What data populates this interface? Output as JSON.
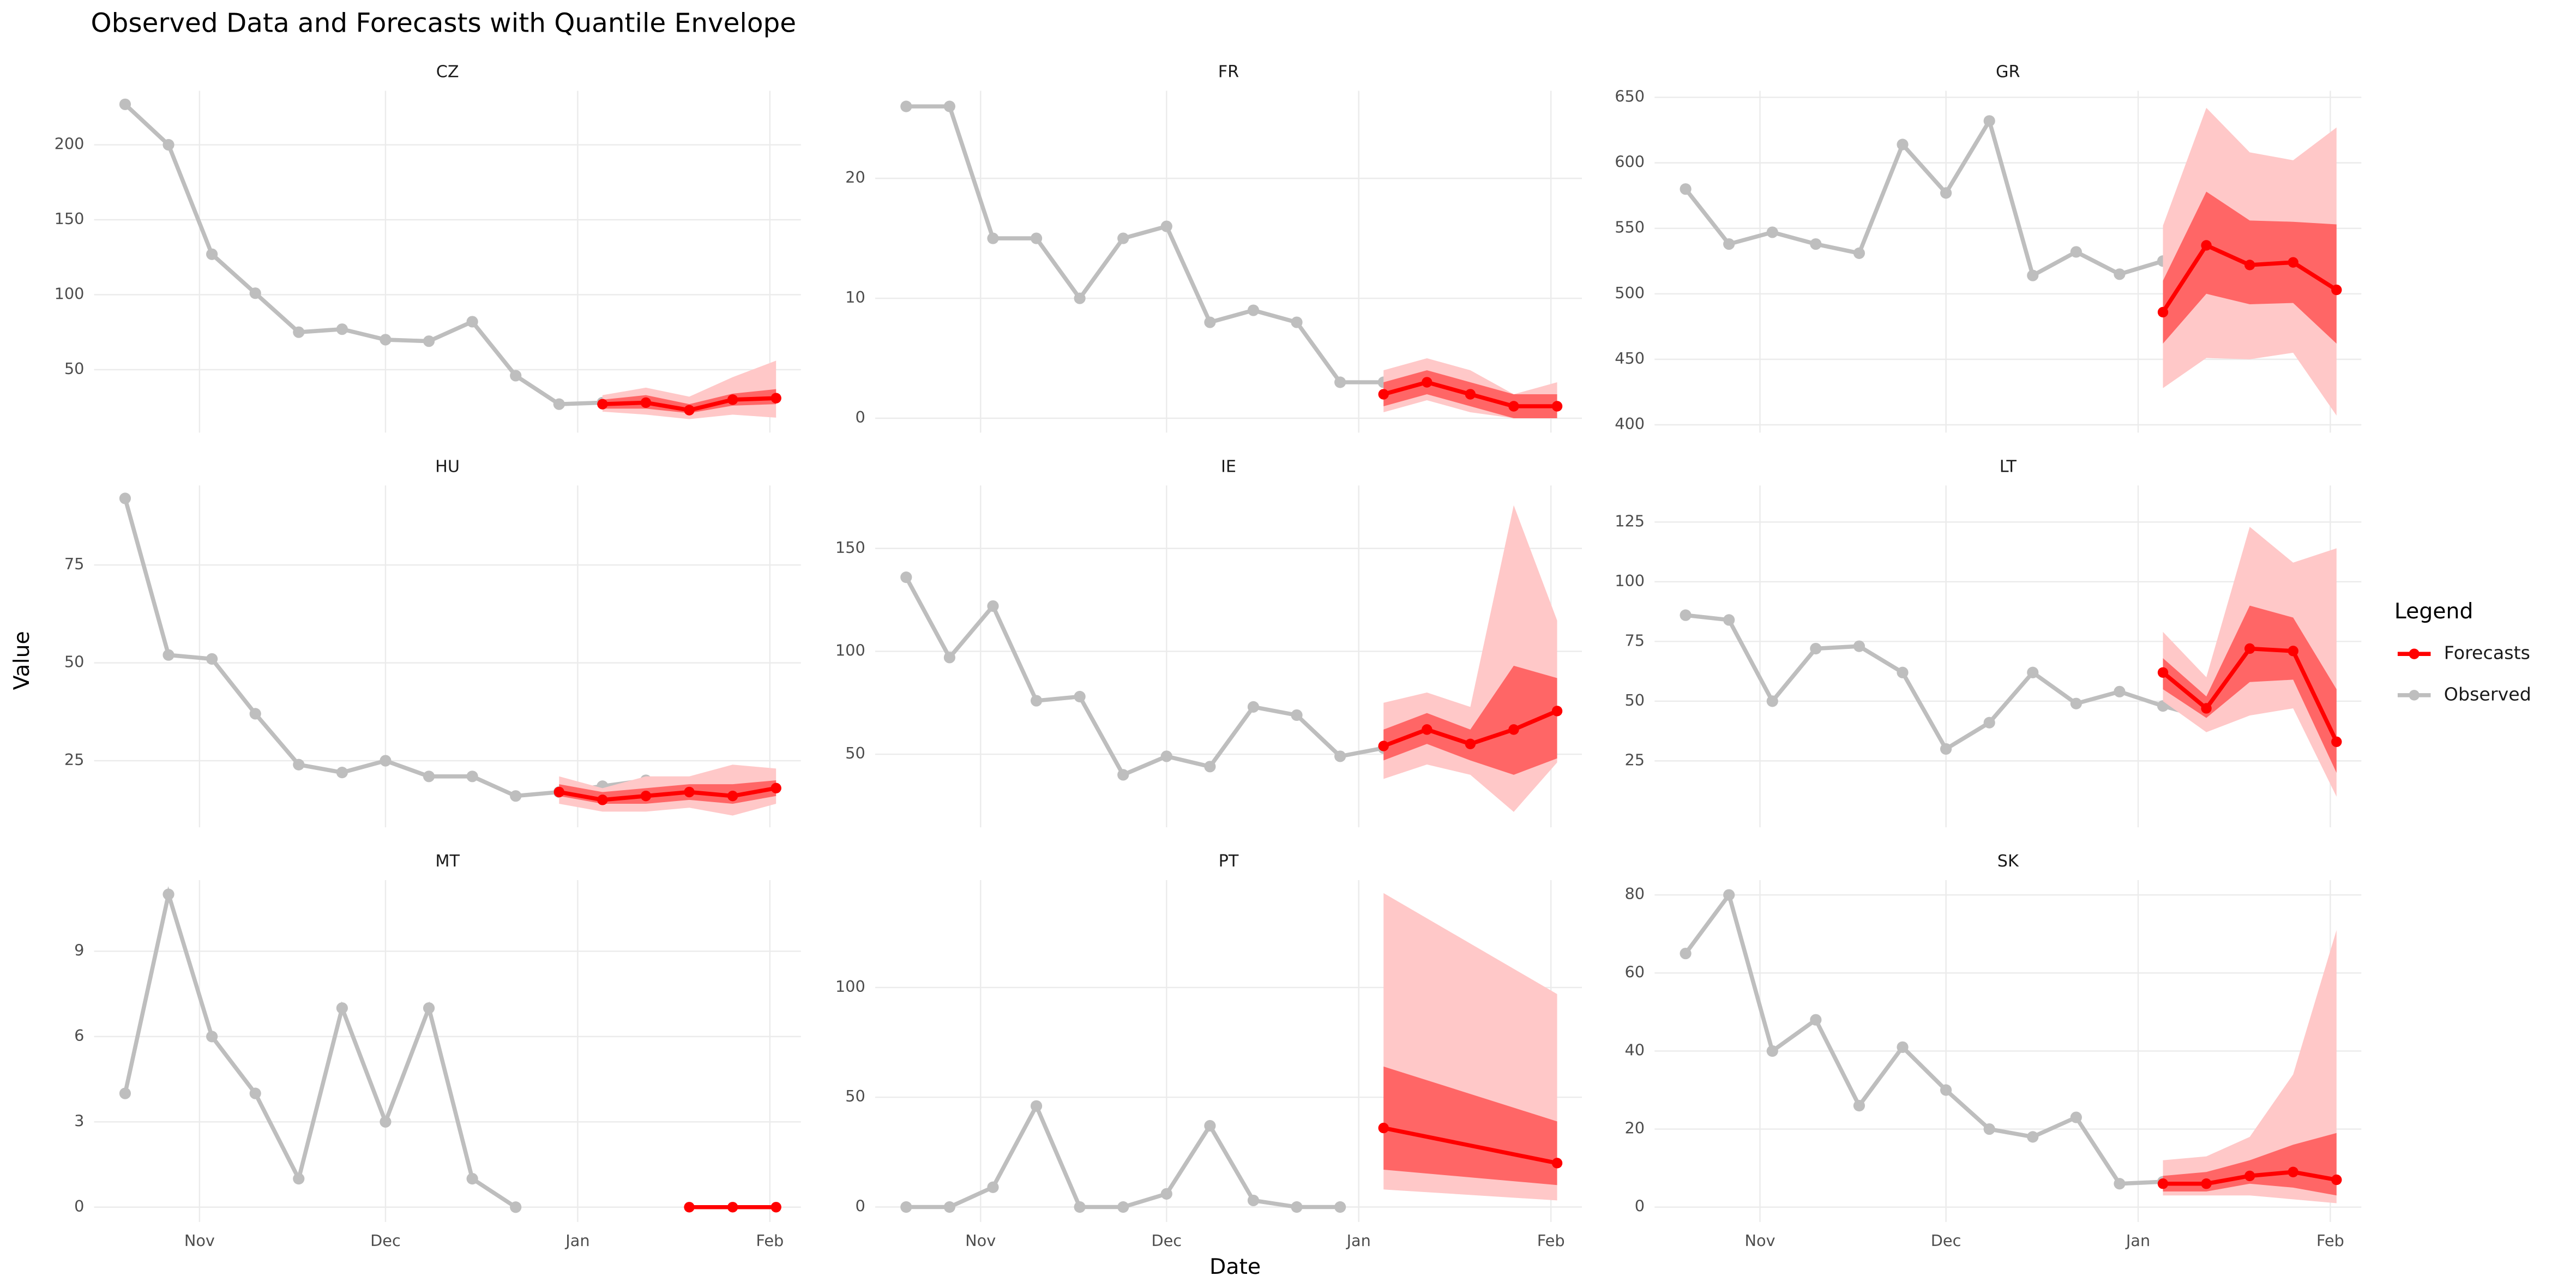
{
  "chart_data": {
    "type": "line",
    "title": "Observed Data and Forecasts with Quantile Envelope",
    "xlabel": "Date",
    "ylabel": "Value",
    "legend_title": "Legend",
    "legend": "right",
    "grid": true,
    "xlim": [
      -5,
      109
    ],
    "xticks": [
      {
        "value": 12,
        "label": "Nov"
      },
      {
        "value": 42,
        "label": "Dec"
      },
      {
        "value": 73,
        "label": "Jan"
      },
      {
        "value": 104,
        "label": "Feb"
      }
    ],
    "series": [
      {
        "name": "Forecasts",
        "color": "#ff0000"
      },
      {
        "name": "Observed",
        "color": "#bebebe"
      }
    ],
    "inner_band_color": "#ff6666",
    "outer_band_color": "#ffc8c8",
    "panels": [
      {
        "name": "CZ",
        "ylim": [
          8,
          236
        ],
        "yticks": [
          50,
          100,
          150,
          200
        ],
        "observed": {
          "x": [
            0,
            7,
            14,
            21,
            28,
            35,
            42,
            49,
            56,
            63,
            70,
            77,
            84
          ],
          "values": [
            227,
            200,
            127,
            101,
            75,
            77,
            70,
            69,
            82,
            46,
            27,
            28,
            31
          ]
        },
        "forecast": {
          "x": [
            77,
            84,
            91,
            98,
            105
          ],
          "values": [
            27,
            28,
            23,
            30,
            31
          ],
          "inner_lower": [
            24,
            24,
            21,
            26,
            27
          ],
          "inner_upper": [
            30,
            33,
            27,
            34,
            37
          ],
          "outer_lower": [
            22,
            20,
            17,
            20,
            18
          ],
          "outer_upper": [
            33,
            38,
            32,
            45,
            56
          ]
        }
      },
      {
        "name": "FR",
        "ylim": [
          -1.2,
          27.3
        ],
        "yticks": [
          0,
          10,
          20
        ],
        "observed": {
          "x": [
            0,
            7,
            14,
            21,
            28,
            35,
            42,
            49,
            56,
            63,
            70,
            77
          ],
          "values": [
            26,
            26,
            15,
            15,
            10,
            15,
            16,
            8,
            9,
            8,
            3,
            3
          ]
        },
        "forecast": {
          "x": [
            77,
            84,
            91,
            98,
            105
          ],
          "values": [
            2,
            3,
            2,
            1,
            1
          ],
          "inner_lower": [
            1,
            2,
            1,
            0,
            0
          ],
          "inner_upper": [
            3,
            4,
            3,
            2,
            2
          ],
          "outer_lower": [
            0.5,
            1.5,
            0.5,
            0,
            0
          ],
          "outer_upper": [
            4,
            5,
            4,
            2,
            3
          ]
        }
      },
      {
        "name": "GR",
        "ylim": [
          394,
          655
        ],
        "yticks": [
          400,
          450,
          500,
          550,
          600,
          650
        ],
        "observed": {
          "x": [
            0,
            7,
            14,
            21,
            28,
            35,
            42,
            49,
            56,
            63,
            70,
            77,
            84
          ],
          "values": [
            580,
            538,
            547,
            538,
            531,
            614,
            577,
            632,
            514,
            532,
            515,
            525,
            537
          ]
        },
        "forecast": {
          "x": [
            77,
            84,
            91,
            98,
            105
          ],
          "values": [
            486,
            537,
            522,
            524,
            503
          ],
          "inner_lower": [
            462,
            500,
            492,
            493,
            462
          ],
          "inner_upper": [
            510,
            578,
            556,
            555,
            553
          ],
          "outer_lower": [
            428,
            451,
            450,
            455,
            407
          ],
          "outer_upper": [
            552,
            642,
            608,
            602,
            627
          ]
        }
      },
      {
        "name": "HU",
        "ylim": [
          8,
          95.3
        ],
        "yticks": [
          25,
          50,
          75
        ],
        "observed": {
          "x": [
            0,
            7,
            14,
            21,
            28,
            35,
            42,
            49,
            56,
            63,
            70,
            77,
            84
          ],
          "values": [
            92,
            52,
            51,
            37,
            24,
            22,
            25,
            21,
            21,
            16,
            17,
            18.5,
            20
          ]
        },
        "forecast": {
          "x": [
            70,
            77,
            84,
            91,
            98,
            105
          ],
          "values": [
            17,
            15,
            16,
            17,
            16,
            18
          ],
          "inner_lower": [
            16,
            14,
            14,
            15,
            14,
            16
          ],
          "inner_upper": [
            19,
            17,
            18,
            19,
            19,
            20
          ],
          "outer_lower": [
            14,
            12,
            12,
            13,
            11,
            14
          ],
          "outer_upper": [
            21,
            18,
            21,
            21,
            24,
            23
          ]
        }
      },
      {
        "name": "IE",
        "ylim": [
          14.5,
          180.6
        ],
        "yticks": [
          50,
          100,
          150
        ],
        "observed": {
          "x": [
            0,
            7,
            14,
            21,
            28,
            35,
            42,
            49,
            56,
            63,
            70,
            77
          ],
          "values": [
            136,
            97,
            122,
            76,
            78,
            40,
            49,
            44,
            73,
            69,
            49,
            53
          ]
        },
        "forecast": {
          "x": [
            77,
            84,
            91,
            98,
            105
          ],
          "values": [
            54,
            62,
            55,
            62,
            71
          ],
          "inner_lower": [
            47,
            55,
            47,
            40,
            48
          ],
          "inner_upper": [
            62,
            70,
            62,
            93,
            87
          ],
          "outer_lower": [
            38,
            45,
            40,
            22,
            46
          ],
          "outer_upper": [
            75,
            80,
            73,
            171,
            115
          ]
        }
      },
      {
        "name": "LT",
        "ylim": [
          -2.8,
          140.3
        ],
        "yticks": [
          25,
          50,
          75,
          100,
          125
        ],
        "observed": {
          "x": [
            0,
            7,
            14,
            21,
            28,
            35,
            42,
            49,
            56,
            63,
            70,
            77,
            84
          ],
          "values": [
            86,
            84,
            50,
            72,
            73,
            62,
            30,
            41,
            62,
            49,
            54,
            48,
            43
          ]
        },
        "forecast": {
          "x": [
            77,
            84,
            91,
            98,
            105
          ],
          "values": [
            62,
            47,
            72,
            71,
            33
          ],
          "inner_lower": [
            55,
            43,
            58,
            59,
            20
          ],
          "inner_upper": [
            68,
            52,
            90,
            85,
            55
          ],
          "outer_lower": [
            50,
            37,
            44,
            47,
            10
          ],
          "outer_upper": [
            79,
            60,
            123,
            108,
            114
          ]
        }
      },
      {
        "name": "MT",
        "ylim": [
          -0.52,
          11.5
        ],
        "yticks": [
          0,
          3,
          6,
          9
        ],
        "observed": {
          "x": [
            0,
            7,
            14,
            21,
            28,
            35,
            42,
            49,
            56,
            63
          ],
          "values": [
            4,
            11,
            6,
            4,
            1,
            7,
            3,
            7,
            1,
            0
          ]
        },
        "forecast": {
          "x": [
            91,
            98,
            105
          ],
          "values": [
            0,
            0,
            0
          ],
          "inner_lower": [
            0,
            0,
            0
          ],
          "inner_upper": [
            0,
            0,
            0
          ],
          "outer_lower": [
            0,
            0,
            0
          ],
          "outer_upper": [
            0,
            0,
            0
          ]
        }
      },
      {
        "name": "PT",
        "ylim": [
          -6.8,
          148.9
        ],
        "yticks": [
          0,
          50,
          100
        ],
        "observed": {
          "x": [
            0,
            7,
            14,
            21,
            28,
            35,
            42,
            49,
            56,
            63,
            70
          ],
          "values": [
            0,
            0,
            9,
            46,
            0,
            0,
            6,
            37,
            3,
            0,
            0
          ]
        },
        "forecast": {
          "x": [
            77,
            105
          ],
          "values": [
            36,
            20
          ],
          "inner_lower": [
            17,
            10
          ],
          "inner_upper": [
            64,
            39
          ],
          "outer_lower": [
            8,
            3
          ],
          "outer_upper": [
            143,
            97
          ]
        }
      },
      {
        "name": "SK",
        "ylim": [
          -3.8,
          83.8
        ],
        "yticks": [
          0,
          20,
          40,
          60,
          80
        ],
        "observed": {
          "x": [
            0,
            7,
            14,
            21,
            28,
            35,
            42,
            49,
            56,
            63,
            70,
            77,
            84
          ],
          "values": [
            65,
            80,
            40,
            48,
            26,
            41,
            30,
            20,
            18,
            23,
            6,
            6.5,
            7
          ]
        },
        "forecast": {
          "x": [
            77,
            84,
            91,
            98,
            105
          ],
          "values": [
            6,
            6,
            8,
            9,
            7
          ],
          "inner_lower": [
            4,
            4,
            6,
            5,
            3
          ],
          "inner_upper": [
            8,
            9,
            12,
            16,
            19
          ],
          "outer_lower": [
            3,
            3,
            3,
            2,
            1
          ],
          "outer_upper": [
            12,
            13,
            18,
            34,
            71
          ]
        }
      }
    ]
  }
}
